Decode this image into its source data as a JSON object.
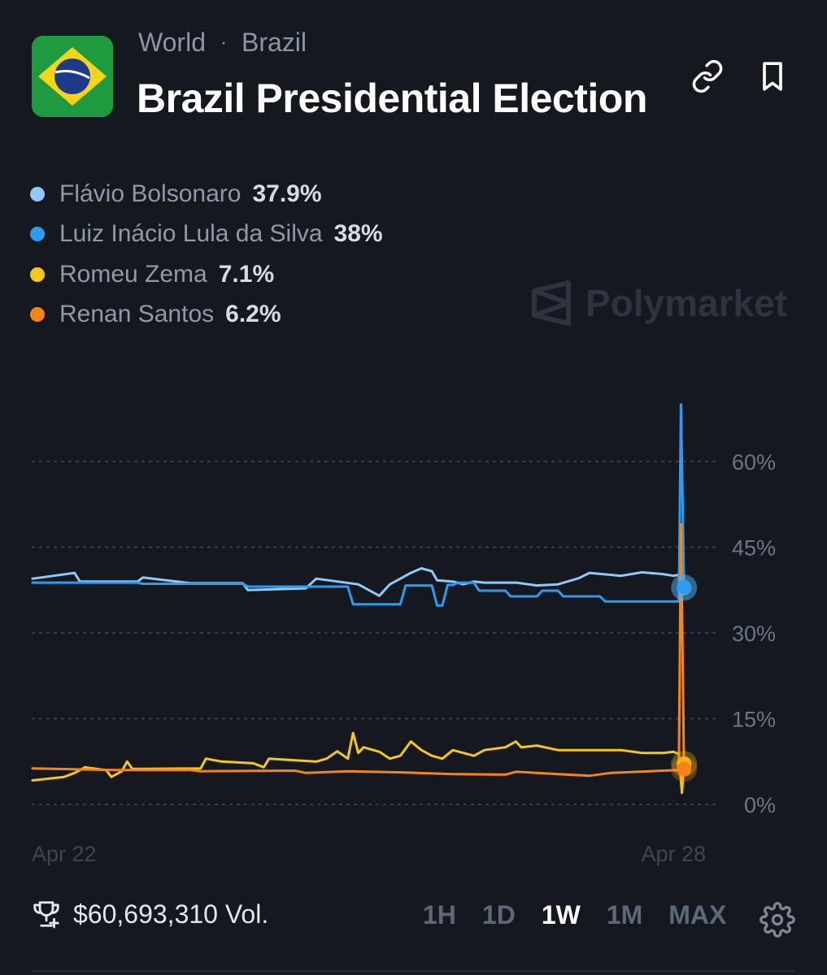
{
  "breadcrumb": {
    "category": "World",
    "separator": "·",
    "subcategory": "Brazil"
  },
  "market": {
    "title": "Brazil Presidential Election"
  },
  "icons": {
    "flag": "brazil-flag-icon",
    "link": "link-icon",
    "bookmark": "bookmark-icon",
    "trophy": "trophy-icon",
    "gear": "gear-icon"
  },
  "watermark": {
    "brand": "Polymarket"
  },
  "legend": [
    {
      "name": "Flávio Bolsonaro",
      "value": "37.9%",
      "color": "#8ec9f8"
    },
    {
      "name": "Luiz Inácio Lula da Silva",
      "value": "38%",
      "color": "#2d9cf0"
    },
    {
      "name": "Romeu Zema",
      "value": "7.1%",
      "color": "#f5c71a"
    },
    {
      "name": "Renan Santos",
      "value": "6.2%",
      "color": "#f58518"
    }
  ],
  "footer": {
    "volume": "$60,693,310 Vol.",
    "ranges": [
      "1H",
      "1D",
      "1W",
      "1M",
      "MAX"
    ],
    "active_range": "1W"
  },
  "chart_data": {
    "type": "line",
    "title": "",
    "xlabel": "",
    "ylabel": "",
    "ylim": [
      0,
      60
    ],
    "yticks": [
      "60%",
      "45%",
      "30%",
      "15%",
      "0%"
    ],
    "ytick_values": [
      60,
      45,
      30,
      15,
      0
    ],
    "xticks": [
      "Apr 22",
      "Apr 28"
    ],
    "x_range_days": [
      0,
      6.5
    ],
    "xtick_positions_days": [
      0.3,
      6.1
    ],
    "grid": "horizontal dotted",
    "legend_position": "top-left",
    "series": [
      {
        "name": "Flávio Bolsonaro",
        "color": "#8ec9f8",
        "final": 37.9,
        "points": [
          [
            0,
            39.5
          ],
          [
            0.2,
            40
          ],
          [
            0.4,
            40.5
          ],
          [
            0.45,
            39
          ],
          [
            1.0,
            39
          ],
          [
            1.05,
            39.7
          ],
          [
            1.5,
            38.7
          ],
          [
            2.0,
            38.7
          ],
          [
            2.05,
            37.5
          ],
          [
            2.6,
            37.8
          ],
          [
            2.7,
            39.5
          ],
          [
            3.1,
            38.5
          ],
          [
            3.3,
            36.5
          ],
          [
            3.4,
            38.5
          ],
          [
            3.5,
            39.5
          ],
          [
            3.6,
            40.5
          ],
          [
            3.7,
            41.3
          ],
          [
            3.8,
            40.8
          ],
          [
            3.85,
            39.2
          ],
          [
            4.0,
            39
          ],
          [
            4.1,
            38.5
          ],
          [
            4.2,
            39
          ],
          [
            4.3,
            38.8
          ],
          [
            4.6,
            38.8
          ],
          [
            4.8,
            38.3
          ],
          [
            5.0,
            38.5
          ],
          [
            5.2,
            39.6
          ],
          [
            5.3,
            40.5
          ],
          [
            5.6,
            40
          ],
          [
            5.8,
            40.6
          ],
          [
            6.0,
            40.3
          ],
          [
            6.1,
            40
          ],
          [
            6.15,
            40.2
          ],
          [
            6.2,
            38
          ]
        ]
      },
      {
        "name": "Luiz Inácio Lula da Silva",
        "color": "#2d9cf0",
        "final": 38,
        "points": [
          [
            0,
            38.8
          ],
          [
            1.0,
            38.8
          ],
          [
            1.05,
            38.6
          ],
          [
            2.0,
            38.6
          ],
          [
            2.05,
            38.1
          ],
          [
            3.0,
            38.1
          ],
          [
            3.05,
            35
          ],
          [
            3.5,
            35
          ],
          [
            3.55,
            38.3
          ],
          [
            3.8,
            38.3
          ],
          [
            3.85,
            34.8
          ],
          [
            3.9,
            34.8
          ],
          [
            3.95,
            38.4
          ],
          [
            4.0,
            38.4
          ],
          [
            4.05,
            38.8
          ],
          [
            4.2,
            38.8
          ],
          [
            4.25,
            37.4
          ],
          [
            4.5,
            37.4
          ],
          [
            4.55,
            36.4
          ],
          [
            4.8,
            36.4
          ],
          [
            4.85,
            37.4
          ],
          [
            5.0,
            37.4
          ],
          [
            5.05,
            36.4
          ],
          [
            5.4,
            36.4
          ],
          [
            5.45,
            35.5
          ],
          [
            6.15,
            35.5
          ],
          [
            6.17,
            70
          ],
          [
            6.2,
            38
          ]
        ]
      },
      {
        "name": "Romeu Zema",
        "color": "#f5c71a",
        "final": 7.1,
        "points": [
          [
            0,
            4.2
          ],
          [
            0.3,
            4.8
          ],
          [
            0.4,
            5.5
          ],
          [
            0.5,
            6.5
          ],
          [
            0.7,
            6
          ],
          [
            0.75,
            4.8
          ],
          [
            0.85,
            5.8
          ],
          [
            0.9,
            7.5
          ],
          [
            0.95,
            6.2
          ],
          [
            1.6,
            6.3
          ],
          [
            1.65,
            8
          ],
          [
            1.8,
            7.5
          ],
          [
            2.1,
            7.2
          ],
          [
            2.2,
            6.5
          ],
          [
            2.25,
            8
          ],
          [
            2.5,
            7.7
          ],
          [
            2.7,
            7.5
          ],
          [
            2.8,
            8
          ],
          [
            2.9,
            9.3
          ],
          [
            3.0,
            8
          ],
          [
            3.05,
            12.5
          ],
          [
            3.1,
            9
          ],
          [
            3.15,
            10
          ],
          [
            3.3,
            9.2
          ],
          [
            3.4,
            8
          ],
          [
            3.5,
            8.5
          ],
          [
            3.6,
            11
          ],
          [
            3.7,
            9.5
          ],
          [
            3.8,
            8.5
          ],
          [
            3.9,
            8
          ],
          [
            4.0,
            9.5
          ],
          [
            4.2,
            8.5
          ],
          [
            4.3,
            9.5
          ],
          [
            4.5,
            10
          ],
          [
            4.6,
            11
          ],
          [
            4.65,
            10
          ],
          [
            4.8,
            10.3
          ],
          [
            5.0,
            9.5
          ],
          [
            5.2,
            9.5
          ],
          [
            5.4,
            9.5
          ],
          [
            5.6,
            9.5
          ],
          [
            5.8,
            9
          ],
          [
            6.0,
            9
          ],
          [
            6.1,
            9.2
          ],
          [
            6.15,
            8.8
          ],
          [
            6.18,
            2
          ],
          [
            6.2,
            7.1
          ]
        ]
      },
      {
        "name": "Renan Santos",
        "color": "#f58518",
        "final": 6.2,
        "points": [
          [
            0,
            6.3
          ],
          [
            0.8,
            6
          ],
          [
            1.5,
            6
          ],
          [
            1.6,
            5.8
          ],
          [
            2.5,
            5.9
          ],
          [
            2.6,
            5.5
          ],
          [
            3.0,
            5.8
          ],
          [
            3.5,
            5.6
          ],
          [
            4.0,
            5.3
          ],
          [
            4.5,
            5.2
          ],
          [
            4.6,
            5.7
          ],
          [
            5.0,
            5.3
          ],
          [
            5.3,
            5
          ],
          [
            5.5,
            5.5
          ],
          [
            6.0,
            5.9
          ],
          [
            6.15,
            6
          ],
          [
            6.17,
            49
          ],
          [
            6.2,
            6.2
          ]
        ]
      }
    ]
  }
}
